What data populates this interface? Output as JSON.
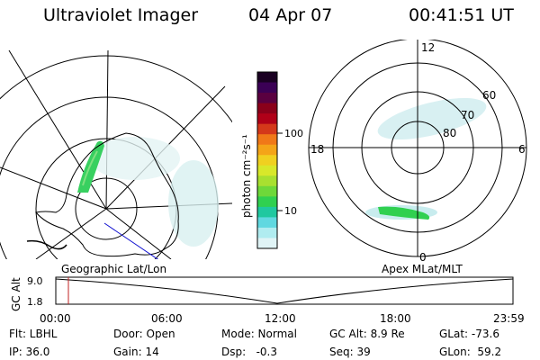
{
  "header": {
    "title": "Ultraviolet Imager",
    "date": "04 Apr 07",
    "time": "00:41:51 UT"
  },
  "colorbar": {
    "unit_label": "photon cm⁻²s⁻¹",
    "ticks": [
      "100",
      "10"
    ],
    "colors": [
      "#1a0022",
      "#3b0055",
      "#5a0040",
      "#8a001a",
      "#b00018",
      "#d4381a",
      "#f07818",
      "#f4a418",
      "#f0d020",
      "#d8e82a",
      "#a8e030",
      "#6ed83a",
      "#30d050",
      "#20c8a0",
      "#60d8e0",
      "#b0ecf0",
      "#e0f4f6"
    ]
  },
  "geo_map": {
    "label": "Geographic Lat/Lon"
  },
  "apex_map": {
    "label": "Apex MLat/MLT",
    "mlt_labels": {
      "top": "12",
      "left": "18",
      "right": "6",
      "bottom": "0"
    },
    "lat_labels": [
      "60",
      "70",
      "80"
    ]
  },
  "altitude_strip": {
    "axis_label": "GC Alt",
    "y_ticks": [
      "9.0",
      "1.8"
    ],
    "x_ticks": [
      "00:00",
      "06:00",
      "12:00",
      "18:00",
      "23:59"
    ]
  },
  "footer": {
    "flt": "Flt: LBHL",
    "ip": "IP: 36.0",
    "door": "Door: Open",
    "gain": "Gain: 14",
    "mode": "Mode: Normal",
    "dsp": "Dsp:   -0.3",
    "gc_alt": "GC Alt: 8.9 Re",
    "seq": "Seq: 39",
    "glat": "GLat: -73.6",
    "glon": "GLon:  59.2"
  }
}
